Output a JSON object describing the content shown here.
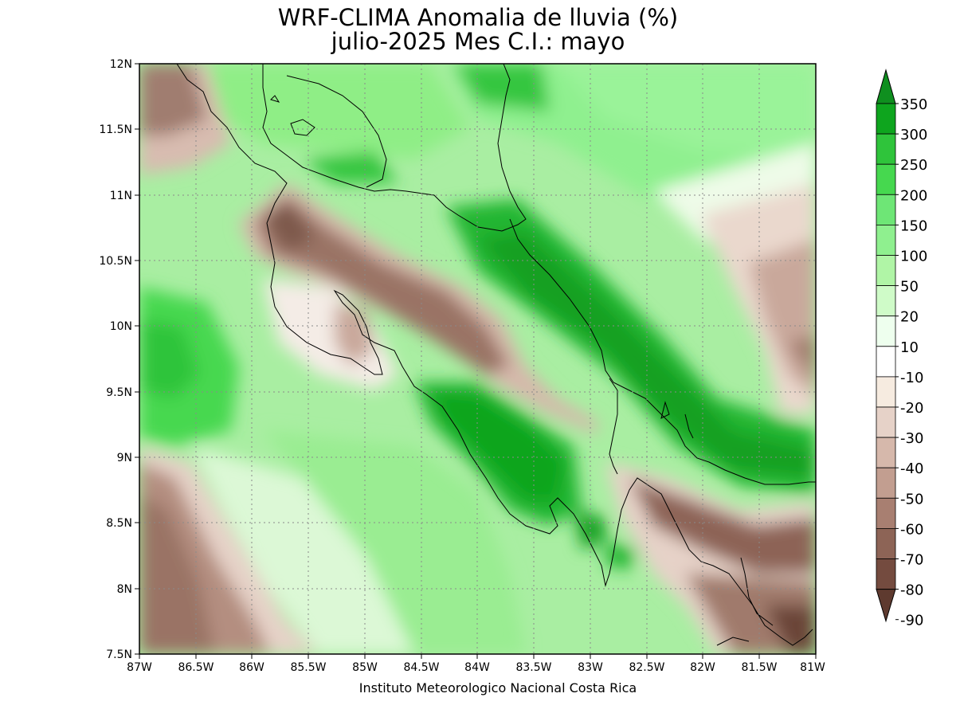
{
  "title": {
    "line1": "WRF-CLIMA Anomalia de lluvia (%)",
    "line2": "julio-2025 Mes C.I.: mayo"
  },
  "credit": "Instituto Meteorologico Nacional Costa Rica",
  "axes": {
    "x_ticks": [
      "87W",
      "86.5W",
      "86W",
      "85.5W",
      "85W",
      "84.5W",
      "84W",
      "83.5W",
      "83W",
      "82.5W",
      "82W",
      "81.5W",
      "81W"
    ],
    "y_ticks": [
      "12N",
      "11.5N",
      "11N",
      "10.5N",
      "10N",
      "9.5N",
      "9N",
      "8.5N",
      "8N",
      "7.5N"
    ],
    "lon_range": [
      -87,
      -81
    ],
    "lat_range": [
      7.5,
      12
    ],
    "grid": "dotted"
  },
  "colorbar": {
    "labels": [
      "350",
      "300",
      "250",
      "200",
      "150",
      "100",
      "50",
      "20",
      "10",
      "-10",
      "-20",
      "-30",
      "-40",
      "-50",
      "-60",
      "-70",
      "-80",
      "-90"
    ],
    "colors": [
      "#0f8f1f",
      "#0ea51e",
      "#2fc43b",
      "#46d84f",
      "#6ee676",
      "#8ff08f",
      "#b0f5a6",
      "#cffbc8",
      "#eeffee",
      "#ffffff",
      "#f6ebe0",
      "#e6d2c8",
      "#d6b8ab",
      "#c29e90",
      "#a87f71",
      "#8d6456",
      "#744b3f",
      "#5e3a2f"
    ]
  },
  "map": {
    "region": "Costa Rica",
    "variable": "Anomalia de lluvia (%)"
  }
}
